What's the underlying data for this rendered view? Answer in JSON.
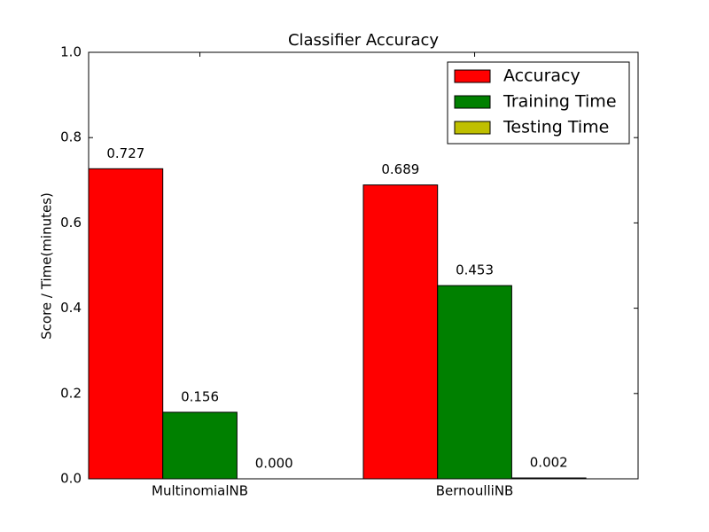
{
  "chart_data": {
    "type": "bar",
    "title": "Classifier Accuracy",
    "y_label": "Score / Time(minutes)",
    "categories": [
      "MultinomialNB",
      "BernoulliNB"
    ],
    "series": [
      {
        "name": "Accuracy",
        "color": "#ff0000",
        "values": [
          0.727,
          0.689
        ],
        "value_labels": [
          "0.727",
          "0.689"
        ]
      },
      {
        "name": "Training Time",
        "color": "#008000",
        "values": [
          0.156,
          0.453
        ],
        "value_labels": [
          "0.156",
          "0.453"
        ]
      },
      {
        "name": "Testing Time",
        "color": "#bfbf00",
        "values": [
          0,
          0.002
        ],
        "value_labels": [
          "0.000",
          "0.002"
        ]
      }
    ],
    "ylim": [
      0,
      1
    ],
    "yticks": [
      {
        "value": 0,
        "label": "0.0"
      },
      0.2,
      0.4,
      0.6,
      0.8,
      {
        "value": 1,
        "label": "1.0"
      }
    ],
    "legend": "upper right"
  }
}
